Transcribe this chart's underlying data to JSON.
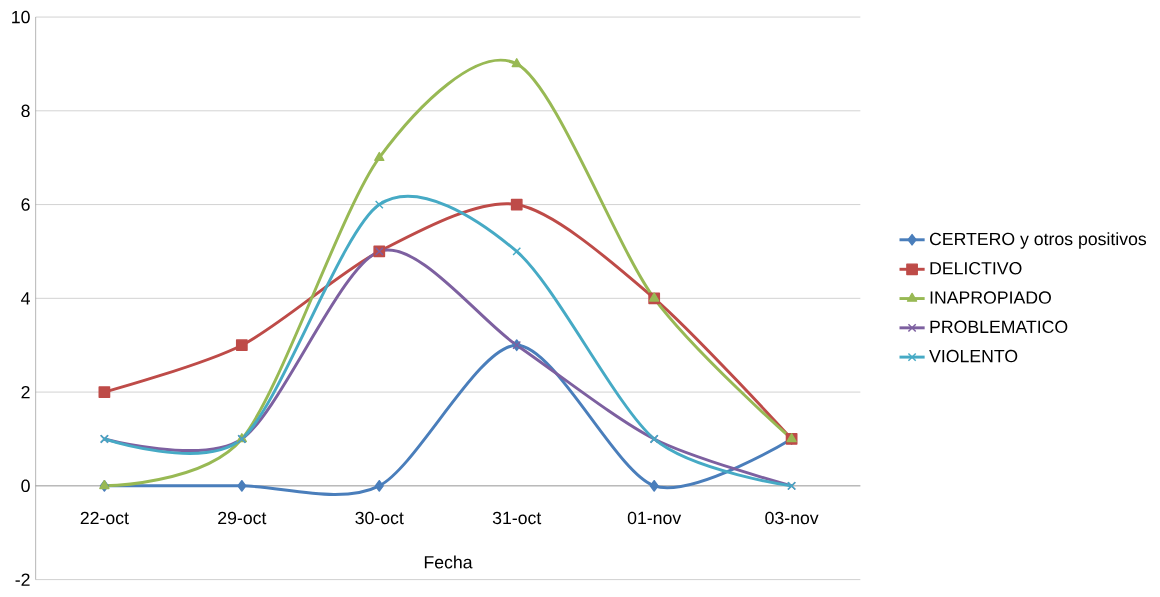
{
  "chart_data": {
    "type": "line",
    "xlabel": "Fecha",
    "categories": [
      "22-oct",
      "29-oct",
      "30-oct",
      "31-oct",
      "01-nov",
      "03-nov"
    ],
    "series": [
      {
        "name": "CERTERO y otros positivos",
        "color": "#4a7ebb",
        "marker": "diamond",
        "values": [
          0,
          0,
          0,
          3,
          0,
          1
        ]
      },
      {
        "name": "DELICTIVO",
        "color": "#be4b48",
        "marker": "square",
        "values": [
          2,
          3,
          5,
          6,
          4,
          1
        ]
      },
      {
        "name": "INAPROPIADO",
        "color": "#98b954",
        "marker": "triangle",
        "values": [
          0,
          1,
          7,
          9,
          4,
          1
        ]
      },
      {
        "name": "PROBLEMATICO",
        "color": "#7d60a0",
        "marker": "cross",
        "values": [
          1,
          1,
          5,
          3,
          1,
          0
        ]
      },
      {
        "name": "VIOLENTO",
        "color": "#46aac5",
        "marker": "cross",
        "values": [
          1,
          1,
          6,
          5,
          1,
          0
        ]
      }
    ],
    "ylim": [
      -2,
      10
    ],
    "yticks": [
      -2,
      0,
      2,
      4,
      6,
      8,
      10
    ],
    "grid": "y",
    "legend": "right",
    "line_style": "solid"
  }
}
